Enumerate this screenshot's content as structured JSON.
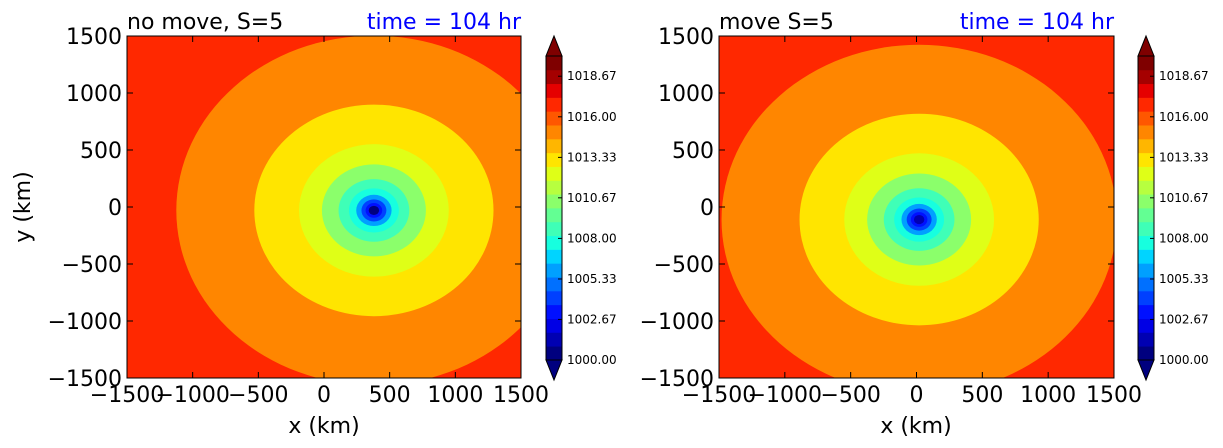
{
  "chart_data": [
    {
      "type": "heatmap",
      "title_left": "no move, S=5",
      "title_right": "time = 104 hr",
      "title_right_color": "#0000ff",
      "xlabel": "x (km)",
      "ylabel": "y (km)",
      "xlim": [
        -1500,
        1500
      ],
      "ylim": [
        -1500,
        1500
      ],
      "xticks": [
        "−1500",
        "−1000",
        "−500",
        "0",
        "500",
        "1000",
        "1500"
      ],
      "yticks": [
        "1500",
        "1000",
        "500",
        "0",
        "−500",
        "−1000",
        "−1500"
      ],
      "center": [
        380,
        -30
      ],
      "min_value": 1000.0,
      "background_value": 1016.5
    },
    {
      "type": "heatmap",
      "title_left": "move S=5",
      "title_right": "time = 104 hr",
      "title_right_color": "#0000ff",
      "xlabel": "x (km)",
      "ylabel": "",
      "xlim": [
        -1500,
        1500
      ],
      "ylim": [
        -1500,
        1500
      ],
      "xticks": [
        "−1500",
        "−1000",
        "−500",
        "0",
        "500",
        "1000",
        "1500"
      ],
      "yticks": [
        "1500",
        "1000",
        "500",
        "0",
        "−500",
        "−1000",
        "−1500"
      ],
      "center": [
        20,
        -110
      ],
      "min_value": 1001.0,
      "background_value": 1016.5
    }
  ],
  "colorbar": {
    "min": 1000.0,
    "max": 1020.0,
    "tick_labels": [
      "1000.00",
      "1002.67",
      "1005.33",
      "1008.00",
      "1010.67",
      "1013.33",
      "1016.00",
      "1018.67"
    ],
    "colors": [
      "#00007f",
      "#0000b2",
      "#0000e5",
      "#0010ff",
      "#0040ff",
      "#0070ff",
      "#00a0ff",
      "#00d4ff",
      "#17ffdf",
      "#3fffb7",
      "#63ff93",
      "#8bff6b",
      "#b7ff3f",
      "#dfff17",
      "#ffe500",
      "#ffb600",
      "#ff8600",
      "#ff5700",
      "#ff2800",
      "#e50000",
      "#a50000",
      "#7f0000"
    ]
  }
}
